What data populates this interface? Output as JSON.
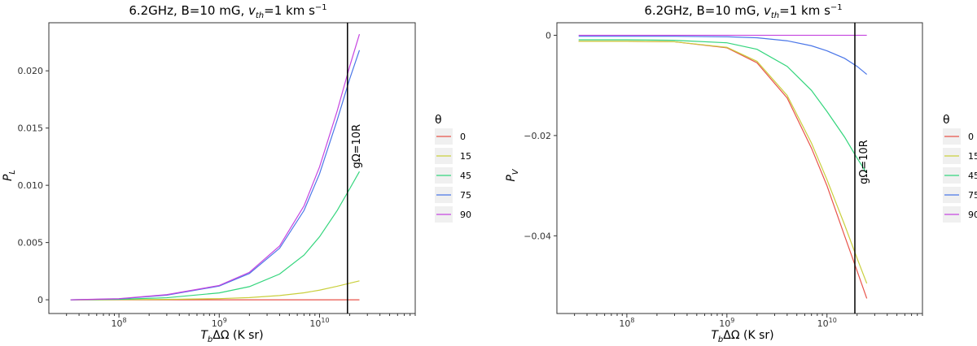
{
  "chart_data": [
    {
      "type": "line",
      "title_main": "6.2GHz, B=10 mG, ",
      "title_var": "v",
      "title_sub": "th",
      "title_rest": "=1 km s",
      "title_sup": "−1",
      "xlabel_var": "T",
      "xlabel_sub": "b",
      "xlabel_rest": "ΔΩ (K sr)",
      "ylabel_var": "P",
      "ylabel_sub": "L",
      "xscale": "log",
      "xlim": [
        20000000.0,
        90000000000.0
      ],
      "ylim": [
        -0.0012,
        0.0242
      ],
      "x_ticks": [
        {
          "value": 100000000.0,
          "base": "10",
          "exp": "8"
        },
        {
          "value": 1000000000.0,
          "base": "10",
          "exp": "9"
        },
        {
          "value": 10000000000.0,
          "base": "10",
          "exp": "10"
        }
      ],
      "y_ticks": [
        {
          "value": 0,
          "label": "0"
        },
        {
          "value": 0.005,
          "label": "0.005"
        },
        {
          "value": 0.01,
          "label": "0.010"
        },
        {
          "value": 0.015,
          "label": "0.015"
        },
        {
          "value": 0.02,
          "label": "0.020"
        }
      ],
      "vline": {
        "x": 19000000000.0,
        "label": "gΩ=10R"
      },
      "legend": {
        "title": "θ",
        "position": "right"
      },
      "x": [
        33000000.0,
        100000000.0,
        300000000.0,
        1000000000.0,
        2000000000.0,
        4000000000.0,
        7000000000.0,
        10000000000.0,
        15000000000.0,
        20000000000.0,
        25000000000.0
      ],
      "series": [
        {
          "name": "0",
          "color": "#e8534a",
          "values": [
            0,
            0,
            0,
            0,
            0,
            0,
            0,
            0,
            0,
            0,
            0
          ]
        },
        {
          "name": "15",
          "color": "#c9cf3c",
          "values": [
            0,
            1e-05,
            3e-05,
            0.0001,
            0.00019,
            0.00037,
            0.00061,
            0.00084,
            0.00118,
            0.00145,
            0.00165
          ]
        },
        {
          "name": "45",
          "color": "#33d57c",
          "values": [
            0,
            4e-05,
            0.00018,
            0.0006,
            0.00115,
            0.00225,
            0.0039,
            0.0055,
            0.0078,
            0.0097,
            0.0112
          ]
        },
        {
          "name": "75",
          "color": "#4a76e8",
          "values": [
            0,
            8e-05,
            0.0004,
            0.0012,
            0.0023,
            0.0045,
            0.0078,
            0.011,
            0.0157,
            0.0193,
            0.0218
          ]
        },
        {
          "name": "90",
          "color": "#c646e0",
          "values": [
            0,
            0.0001,
            0.00045,
            0.00125,
            0.0024,
            0.0047,
            0.0082,
            0.0116,
            0.0165,
            0.0204,
            0.0232
          ]
        }
      ]
    },
    {
      "type": "line",
      "title_main": "6.2GHz, B=10 mG, ",
      "title_var": "v",
      "title_sub": "th",
      "title_rest": "=1 km s",
      "title_sup": "−1",
      "xlabel_var": "T",
      "xlabel_sub": "b",
      "xlabel_rest": "ΔΩ (K sr)",
      "ylabel_var": "P",
      "ylabel_sub": "V",
      "xscale": "log",
      "xlim": [
        20000000.0,
        90000000000.0
      ],
      "ylim": [
        -0.0555,
        0.0025
      ],
      "x_ticks": [
        {
          "value": 100000000.0,
          "base": "10",
          "exp": "8"
        },
        {
          "value": 1000000000.0,
          "base": "10",
          "exp": "9"
        },
        {
          "value": 10000000000.0,
          "base": "10",
          "exp": "10"
        }
      ],
      "y_ticks": [
        {
          "value": 0,
          "label": "0"
        },
        {
          "value": -0.02,
          "label": "−0.02"
        },
        {
          "value": -0.04,
          "label": "−0.04"
        }
      ],
      "vline": {
        "x": 19000000000.0,
        "label": "gΩ=10R"
      },
      "legend": {
        "title": "θ",
        "position": "right"
      },
      "x": [
        33000000.0,
        100000000.0,
        300000000.0,
        1000000000.0,
        2000000000.0,
        4000000000.0,
        7000000000.0,
        10000000000.0,
        15000000000.0,
        20000000000.0,
        25000000000.0
      ],
      "series": [
        {
          "name": "0",
          "color": "#e8534a",
          "values": [
            -0.0012,
            -0.0012,
            -0.0013,
            -0.0025,
            -0.0055,
            -0.0125,
            -0.0225,
            -0.03,
            -0.04,
            -0.047,
            -0.0525
          ]
        },
        {
          "name": "15",
          "color": "#c9cf3c",
          "values": [
            -0.0012,
            -0.0012,
            -0.0013,
            -0.0024,
            -0.0052,
            -0.012,
            -0.0215,
            -0.0288,
            -0.0378,
            -0.0445,
            -0.0495
          ]
        },
        {
          "name": "45",
          "color": "#33d57c",
          "values": [
            -0.0009,
            -0.0009,
            -0.001,
            -0.0015,
            -0.0028,
            -0.0062,
            -0.011,
            -0.0152,
            -0.0203,
            -0.0245,
            -0.0275
          ]
        },
        {
          "name": "75",
          "color": "#4a76e8",
          "values": [
            -0.0002,
            -0.0002,
            -0.0002,
            -0.0003,
            -0.0005,
            -0.0011,
            -0.0021,
            -0.0031,
            -0.0046,
            -0.0062,
            -0.0078
          ]
        },
        {
          "name": "90",
          "color": "#c646e0",
          "values": [
            0,
            0,
            0,
            0,
            0,
            0,
            0,
            0,
            0,
            0,
            0
          ]
        }
      ]
    }
  ]
}
